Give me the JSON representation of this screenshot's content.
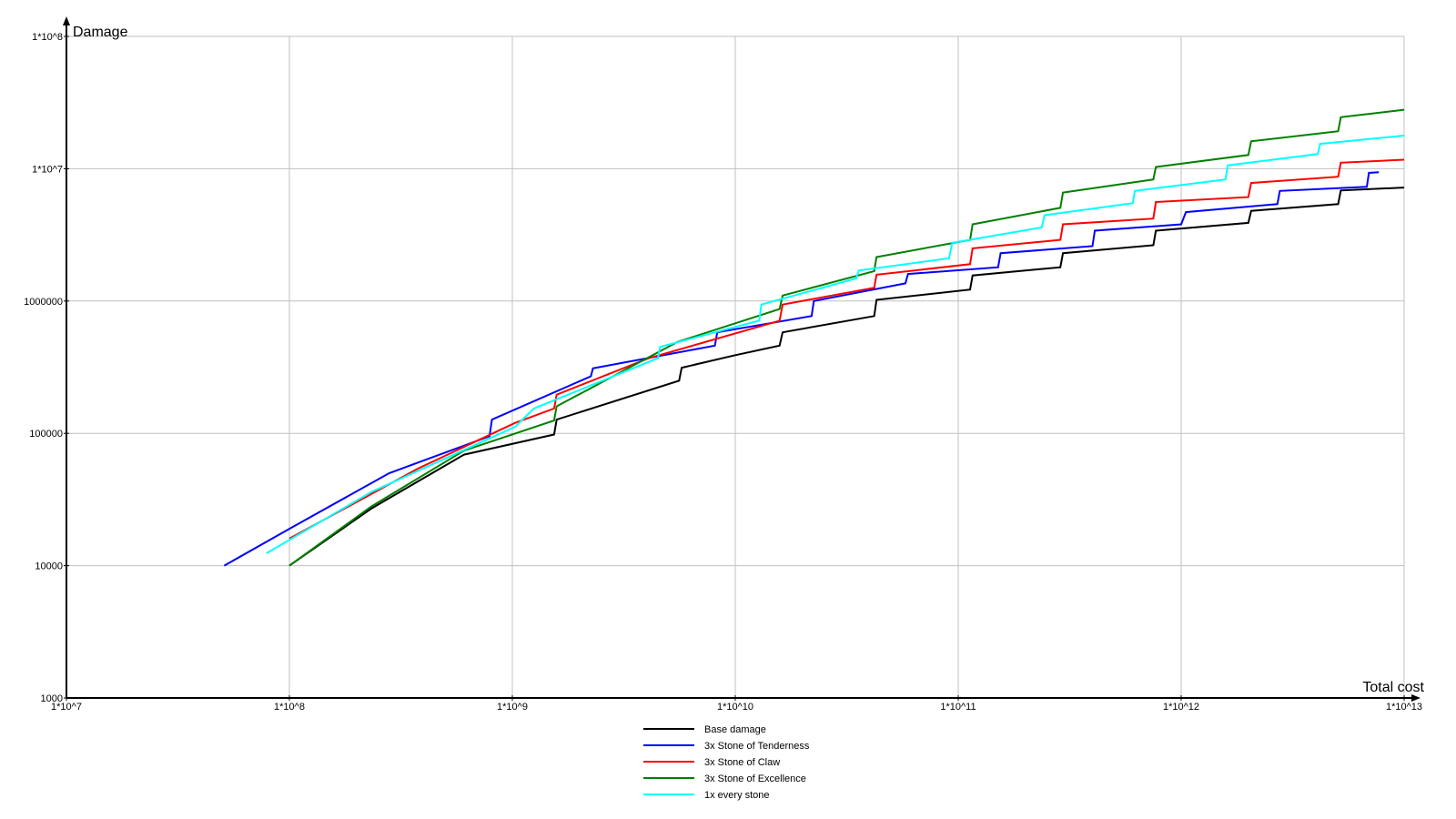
{
  "chart_data": {
    "type": "line",
    "title": "",
    "xlabel": "Total cost",
    "ylabel": "Damage",
    "xscale": "log",
    "yscale": "log",
    "xlim": [
      10000000.0,
      10000000000000.0
    ],
    "ylim": [
      1000,
      100000000.0
    ],
    "grid": true,
    "legend_placement": "bottom-center",
    "x_tick_labels": [
      "1*10^7",
      "1*10^8",
      "1*10^9",
      "1*10^10",
      "1*10^11",
      "1*10^12",
      "1*10^13"
    ],
    "x_tick_values": [
      10000000.0,
      100000000.0,
      1000000000.0,
      10000000000.0,
      100000000000.0,
      1000000000000.0,
      10000000000000.0
    ],
    "y_tick_labels": [
      "1000",
      "10000",
      "100000",
      "1000000",
      "1*10^7",
      "1*10^8"
    ],
    "y_tick_values": [
      1000,
      10000,
      100000,
      1000000,
      10000000.0,
      100000000.0
    ],
    "series": [
      {
        "name": "Base damage",
        "color": "#000000",
        "points": [
          [
            100000000.0,
            10000.0
          ],
          [
            233000000.0,
            27000.0
          ],
          [
            607000000.0,
            69000.0
          ],
          [
            1540000000.0,
            98000.0
          ],
          [
            1580000000.0,
            127000.0
          ],
          [
            5600000000.0,
            250000.0
          ],
          [
            5750000000.0,
            313000.0
          ],
          [
            10000000000.0,
            390000.0
          ],
          [
            15800000000.0,
            460000.0
          ],
          [
            16300000000.0,
            580000.0
          ],
          [
            42000000000.0,
            770000.0
          ],
          [
            43000000000.0,
            1020000.0
          ],
          [
            113000000000.0,
            1220000.0
          ],
          [
            116000000000.0,
            1560000.0
          ],
          [
            287000000000.0,
            1800000.0
          ],
          [
            295000000000.0,
            2300000.0
          ],
          [
            750000000000.0,
            2640000.0
          ],
          [
            770000000000.0,
            3400000.0
          ],
          [
            2000000000000.0,
            3900000.0
          ],
          [
            2060000000000.0,
            4800000.0
          ],
          [
            5060000000000.0,
            5400000.0
          ],
          [
            5200000000000.0,
            6850000.0
          ],
          [
            10000000000000.0,
            7200000.0
          ]
        ]
      },
      {
        "name": "3x Stone of Tenderness",
        "color": "#0000ff",
        "points": [
          [
            51000000.0,
            10000.0
          ],
          [
            100000000.0,
            19000.0
          ],
          [
            280000000.0,
            50000.0
          ],
          [
            790000000.0,
            95000.0
          ],
          [
            810000000.0,
            127000.0
          ],
          [
            2250000000.0,
            270000.0
          ],
          [
            2300000000.0,
            310000.0
          ],
          [
            8100000000.0,
            460000.0
          ],
          [
            8300000000.0,
            580000.0
          ],
          [
            22000000000.0,
            770000.0
          ],
          [
            22500000000.0,
            1000000.0
          ],
          [
            58000000000.0,
            1360000.0
          ],
          [
            59500000000.0,
            1600000.0
          ],
          [
            151000000000.0,
            1800000.0
          ],
          [
            155000000000.0,
            2300000.0
          ],
          [
            400000000000.0,
            2600000.0
          ],
          [
            410000000000.0,
            3400000.0
          ],
          [
            1000000000000.0,
            3800000.0
          ],
          [
            1050000000000.0,
            4700000.0
          ],
          [
            2700000000000.0,
            5400000.0
          ],
          [
            2770000000000.0,
            6800000.0
          ],
          [
            6800000000000.0,
            7300000.0
          ],
          [
            6950000000000.0,
            9300000.0
          ],
          [
            7700000000000.0,
            9400000.0
          ]
        ]
      },
      {
        "name": "3x Stone of Claw",
        "color": "#ff0000",
        "points": [
          [
            100000000.0,
            16000.0
          ],
          [
            376000000.0,
            54000.0
          ],
          [
            1030000000.0,
            120000.0
          ],
          [
            1540000000.0,
            154000.0
          ],
          [
            1580000000.0,
            196000.0
          ],
          [
            4100000000.0,
            370000.0
          ],
          [
            15800000000.0,
            710000.0
          ],
          [
            16300000000.0,
            940000.0
          ],
          [
            42000000000.0,
            1260000.0
          ],
          [
            43000000000.0,
            1580000.0
          ],
          [
            113000000000.0,
            1900000.0
          ],
          [
            116000000000.0,
            2500000.0
          ],
          [
            287000000000.0,
            2900000.0
          ],
          [
            295000000000.0,
            3800000.0
          ],
          [
            750000000000.0,
            4200000.0
          ],
          [
            770000000000.0,
            5600000.0
          ],
          [
            2000000000000.0,
            6100000.0
          ],
          [
            2060000000000.0,
            7800000.0
          ],
          [
            5060000000000.0,
            8700000.0
          ],
          [
            5200000000000.0,
            11100000.0
          ],
          [
            10000000000000.0,
            11700000.0
          ]
        ]
      },
      {
        "name": "3x Stone of Excellence",
        "color": "#008000",
        "points": [
          [
            100000000.0,
            10000.0
          ],
          [
            233000000.0,
            28000.0
          ],
          [
            607000000.0,
            74000.0
          ],
          [
            1540000000.0,
            125000.0
          ],
          [
            1580000000.0,
            160000.0
          ],
          [
            5500000000.0,
            490000.0
          ],
          [
            15800000000.0,
            870000.0
          ],
          [
            16300000000.0,
            1100000.0
          ],
          [
            42000000000.0,
            1680000.0
          ],
          [
            43000000000.0,
            2150000.0
          ],
          [
            113000000000.0,
            2900000.0
          ],
          [
            116000000000.0,
            3800000.0
          ],
          [
            287000000000.0,
            5060000.0
          ],
          [
            295000000000.0,
            6600000.0
          ],
          [
            750000000000.0,
            8300000.0
          ],
          [
            770000000000.0,
            10300000.0
          ],
          [
            2000000000000.0,
            12700000.0
          ],
          [
            2060000000000.0,
            16100000.0
          ],
          [
            5060000000000.0,
            19200000.0
          ],
          [
            5200000000000.0,
            24500000.0
          ],
          [
            10000000000000.0,
            27900000.0
          ]
        ]
      },
      {
        "name": "1x every stone",
        "color": "#00ffff",
        "points": [
          [
            79000000.0,
            12400.0
          ],
          [
            233000000.0,
            36000.0
          ],
          [
            1030000000.0,
            112000.0
          ],
          [
            1250000000.0,
            154000.0
          ],
          [
            4500000000.0,
            370000.0
          ],
          [
            4600000000.0,
            450000.0
          ],
          [
            12800000000.0,
            710000.0
          ],
          [
            13100000000.0,
            940000.0
          ],
          [
            34800000000.0,
            1480000.0
          ],
          [
            35800000000.0,
            1700000.0
          ],
          [
            91000000000.0,
            2100000.0
          ],
          [
            94000000000.0,
            2750000.0
          ],
          [
            237000000000.0,
            3600000.0
          ],
          [
            244000000000.0,
            4450000.0
          ],
          [
            607000000000.0,
            5500000.0
          ],
          [
            620000000000.0,
            6800000.0
          ],
          [
            1580000000000.0,
            8300000.0
          ],
          [
            1620000000000.0,
            10600000.0
          ],
          [
            4100000000000.0,
            12900000.0
          ],
          [
            4200000000000.0,
            15400000.0
          ],
          [
            10000000000000.0,
            17800000.0
          ]
        ]
      }
    ]
  }
}
